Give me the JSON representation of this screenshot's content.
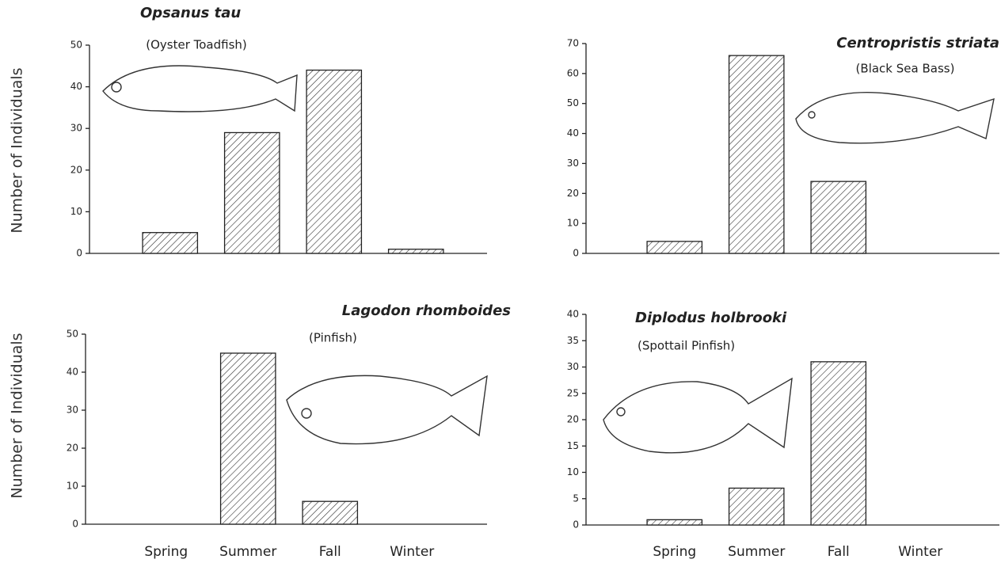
{
  "chart_data": [
    {
      "type": "bar",
      "title": "Opsanus tau",
      "subtitle": "(Oyster Toadfish)",
      "ylabel": "Number of Individuals",
      "categories": [
        null,
        null,
        null,
        null
      ],
      "values": [
        5,
        29,
        44,
        1
      ],
      "ylim": [
        0,
        50
      ],
      "yticks": [
        0,
        10,
        20,
        30,
        40,
        50
      ]
    },
    {
      "type": "bar",
      "title": "Centropristis striata",
      "subtitle": "(Black Sea Bass)",
      "categories": [
        null,
        null,
        null,
        null
      ],
      "values": [
        4,
        66,
        24,
        0
      ],
      "ylim": [
        0,
        70
      ],
      "yticks": [
        0,
        10,
        20,
        30,
        40,
        50,
        60,
        70
      ]
    },
    {
      "type": "bar",
      "title": "Lagodon rhomboides",
      "subtitle": "(Pinfish)",
      "ylabel": "Number of Individuals",
      "categories": [
        "Spring",
        "Summer",
        "Fall",
        "Winter"
      ],
      "values": [
        0,
        45,
        6,
        0
      ],
      "ylim": [
        0,
        50
      ],
      "yticks": [
        0,
        10,
        20,
        30,
        40,
        50
      ]
    },
    {
      "type": "bar",
      "title": "Diplodus holbrooki",
      "subtitle": "(Spottail Pinfish)",
      "categories": [
        "Spring",
        "Summer",
        "Fall",
        "Winter"
      ],
      "values": [
        1,
        7,
        31,
        0
      ],
      "ylim": [
        0,
        40
      ],
      "yticks": [
        0,
        5,
        10,
        15,
        20,
        25,
        30,
        35,
        40
      ]
    }
  ]
}
